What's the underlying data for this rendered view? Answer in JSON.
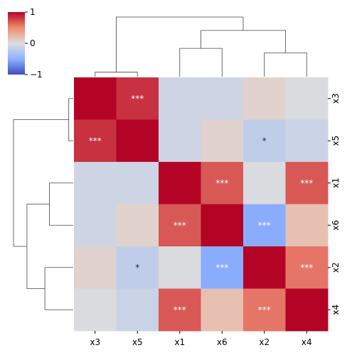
{
  "chart_data": {
    "type": "heatmap",
    "title": "",
    "row_labels": [
      "x3",
      "x5",
      "x1",
      "x6",
      "x2",
      "x4"
    ],
    "col_labels": [
      "x3",
      "x5",
      "x1",
      "x6",
      "x2",
      "x4"
    ],
    "values": [
      [
        1.0,
        0.85,
        -0.1,
        -0.1,
        0.08,
        -0.02
      ],
      [
        0.85,
        1.0,
        -0.1,
        0.08,
        -0.18,
        -0.12
      ],
      [
        -0.1,
        -0.1,
        1.0,
        0.72,
        -0.02,
        0.72
      ],
      [
        -0.1,
        0.08,
        0.72,
        1.0,
        -0.52,
        0.22
      ],
      [
        0.08,
        -0.18,
        -0.02,
        -0.52,
        1.0,
        0.62
      ],
      [
        -0.02,
        -0.12,
        0.72,
        0.22,
        0.62,
        1.0
      ]
    ],
    "annotations": [
      [
        "",
        "***",
        "",
        "",
        "",
        ""
      ],
      [
        "***",
        "",
        "",
        "",
        "*",
        ""
      ],
      [
        "",
        "",
        "",
        "***",
        "",
        "***"
      ],
      [
        "",
        "",
        "***",
        "",
        "***",
        ""
      ],
      [
        "",
        "*",
        "",
        "***",
        "",
        "***"
      ],
      [
        "",
        "",
        "***",
        "",
        "***",
        ""
      ]
    ],
    "colormap": "coolwarm",
    "vmin": -1,
    "vmax": 1,
    "colorbar_ticks": [
      "1",
      "0",
      "−1"
    ],
    "dendrogram_top": [
      {
        "left": 0,
        "right": 1,
        "height": 0.15
      },
      {
        "left": 4,
        "right": 5,
        "height": 0.8
      },
      {
        "left": 2,
        "right": 3,
        "height": 0.95
      },
      {
        "left": "c2",
        "right": "c1",
        "height": 1.55
      },
      {
        "left": "c0",
        "right": "c3",
        "height": 2.0
      }
    ],
    "dendrogram_left": [
      {
        "top": 0,
        "bottom": 1,
        "depth": 0.15
      },
      {
        "top": 2,
        "bottom": 3,
        "depth": 0.8
      },
      {
        "top": 4,
        "bottom": 5,
        "depth": 0.95
      },
      {
        "top": "c1",
        "bottom": "c2",
        "depth": 1.55
      },
      {
        "top": "c0",
        "bottom": "c3",
        "depth": 2.0
      }
    ]
  }
}
